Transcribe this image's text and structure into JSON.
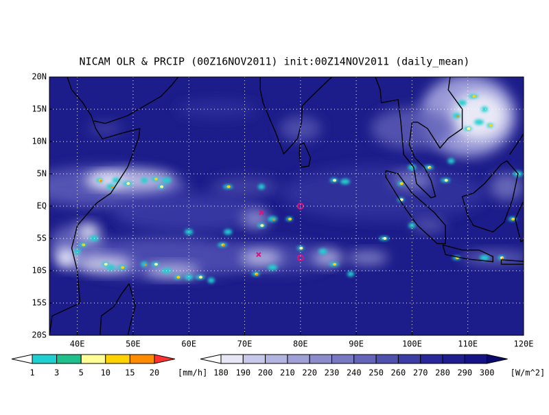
{
  "title": "NICAM OLR & PRCIP (00Z16NOV2011) init:00Z14NOV2011 (daily_mean)",
  "lat_labels": [
    "20N",
    "15N",
    "10N",
    "5N",
    "EQ",
    "5S",
    "10S",
    "15S",
    "20S"
  ],
  "lon_labels": [
    "40E",
    "50E",
    "60E",
    "70E",
    "80E",
    "90E",
    "100E",
    "110E",
    "120E"
  ],
  "precip_colorbar": {
    "labels": [
      "1",
      "3",
      "5",
      "10",
      "15",
      "20"
    ],
    "unit": "[mm/h]",
    "colors": [
      "#ffffff",
      "#20d0d0",
      "#20c08c",
      "#ffff96",
      "#ffd200",
      "#ff8c00",
      "#ff3232"
    ]
  },
  "olr_colorbar": {
    "labels": [
      "180",
      "190",
      "200",
      "210",
      "220",
      "230",
      "240",
      "250",
      "260",
      "270",
      "280",
      "290",
      "300"
    ],
    "unit": "[W/m^2]",
    "colors": [
      "#ffffff",
      "#e6e6f5",
      "#c8c8eb",
      "#b4b4e1",
      "#a0a0d7",
      "#8c8ccd",
      "#7878c3",
      "#6464b9",
      "#5050af",
      "#3c3ca5",
      "#28289b",
      "#1e1e91",
      "#141487",
      "#0a0a6e"
    ]
  }
}
